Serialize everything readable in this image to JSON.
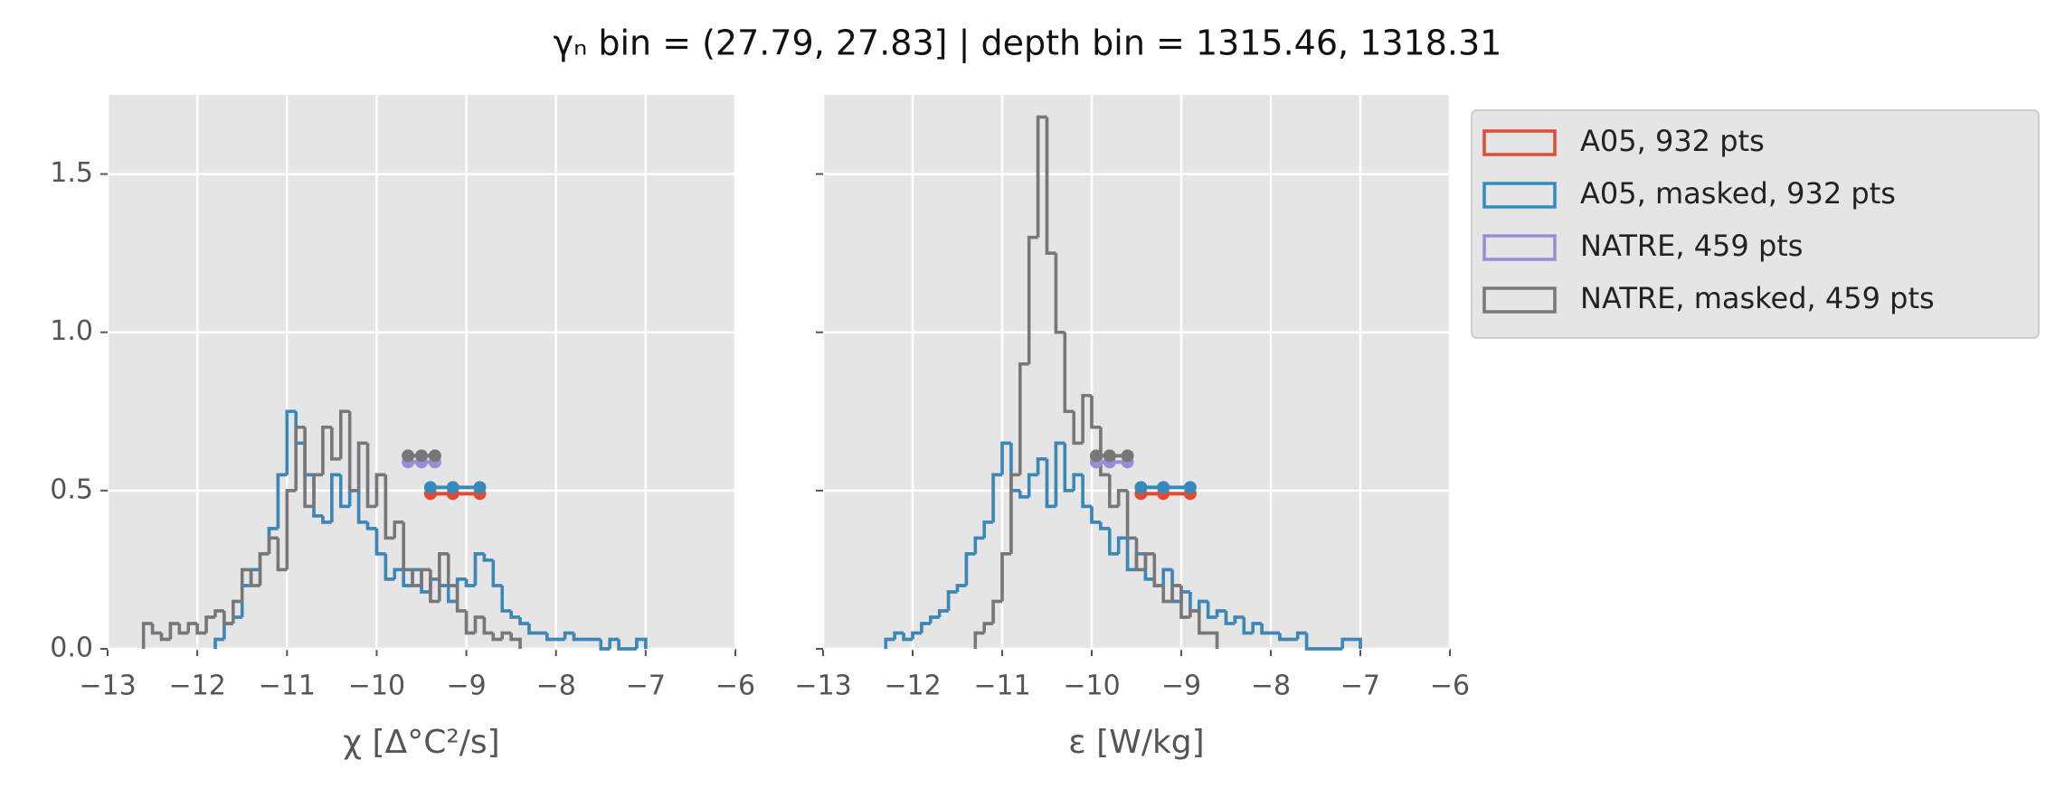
{
  "figure_title": "γₙ bin = (27.79, 27.83] | depth bin = 1315.46, 1318.31",
  "chart_data": [
    {
      "type": "histogram",
      "xlabel": "χ [Δ°C²/s]",
      "xlim": [
        -13,
        -6
      ],
      "ylim": [
        0,
        1.75
      ],
      "xticks": [
        {
          "value": -13,
          "label": "−13"
        },
        {
          "value": -12,
          "label": "−12"
        },
        {
          "value": -11,
          "label": "−11"
        },
        {
          "value": -10,
          "label": "−10"
        },
        {
          "value": -9,
          "label": "−9"
        },
        {
          "value": -8,
          "label": "−8"
        },
        {
          "value": -7,
          "label": "−7"
        },
        {
          "value": -6,
          "label": "−6"
        }
      ],
      "yticks": [
        {
          "value": 0,
          "label": "0.0"
        },
        {
          "value": 0.5,
          "label": "0.5"
        },
        {
          "value": 1,
          "label": "1.0"
        },
        {
          "value": 1.5,
          "label": "1.5"
        }
      ],
      "show_ytick_labels": true,
      "grid": true,
      "legend": "outside-right",
      "series": [
        {
          "name": "A05, 932 pts",
          "color": "#e24a33",
          "bins": [
            -11.8,
            -11.7,
            -11.6,
            -11.5,
            -11.4,
            -11.3,
            -11.2,
            -11.1,
            -11.0,
            -10.9,
            -10.8,
            -10.7,
            -10.6,
            -10.5,
            -10.4,
            -10.3,
            -10.2,
            -10.1,
            -10.0,
            -9.9,
            -9.8,
            -9.7,
            -9.6,
            -9.5,
            -9.4,
            -9.3,
            -9.2,
            -9.1,
            -9.0,
            -8.9,
            -8.8,
            -8.7,
            -8.6,
            -8.5,
            -8.4,
            -8.3,
            -8.2,
            -8.1,
            -8.0,
            -7.9,
            -7.8,
            -7.7,
            -7.6,
            -7.5,
            -7.4,
            -7.3,
            -7.2,
            -7.1,
            -7.0
          ],
          "values": [
            0.03,
            0.08,
            0.1,
            0.2,
            0.25,
            0.3,
            0.38,
            0.55,
            0.75,
            0.65,
            0.55,
            0.42,
            0.4,
            0.55,
            0.45,
            0.5,
            0.4,
            0.38,
            0.3,
            0.22,
            0.25,
            0.2,
            0.25,
            0.18,
            0.22,
            0.2,
            0.15,
            0.22,
            0.2,
            0.3,
            0.28,
            0.2,
            0.12,
            0.1,
            0.08,
            0.05,
            0.05,
            0.03,
            0.03,
            0.05,
            0.03,
            0.03,
            0.03,
            0,
            0.03,
            0,
            0,
            0.03
          ],
          "marker_x": [
            -9.4,
            -9.15,
            -8.85
          ],
          "marker_y": 0.49
        },
        {
          "name": "A05, masked,  932 pts",
          "color": "#348abd",
          "bins": [
            -11.8,
            -11.7,
            -11.6,
            -11.5,
            -11.4,
            -11.3,
            -11.2,
            -11.1,
            -11.0,
            -10.9,
            -10.8,
            -10.7,
            -10.6,
            -10.5,
            -10.4,
            -10.3,
            -10.2,
            -10.1,
            -10.0,
            -9.9,
            -9.8,
            -9.7,
            -9.6,
            -9.5,
            -9.4,
            -9.3,
            -9.2,
            -9.1,
            -9.0,
            -8.9,
            -8.8,
            -8.7,
            -8.6,
            -8.5,
            -8.4,
            -8.3,
            -8.2,
            -8.1,
            -8.0,
            -7.9,
            -7.8,
            -7.7,
            -7.6,
            -7.5,
            -7.4,
            -7.3,
            -7.2,
            -7.1,
            -7.0
          ],
          "values": [
            0.03,
            0.08,
            0.1,
            0.2,
            0.25,
            0.3,
            0.38,
            0.55,
            0.75,
            0.65,
            0.55,
            0.42,
            0.4,
            0.55,
            0.45,
            0.5,
            0.4,
            0.38,
            0.3,
            0.22,
            0.25,
            0.2,
            0.25,
            0.18,
            0.22,
            0.2,
            0.15,
            0.22,
            0.2,
            0.3,
            0.28,
            0.2,
            0.12,
            0.1,
            0.08,
            0.05,
            0.05,
            0.03,
            0.03,
            0.05,
            0.03,
            0.03,
            0.03,
            0,
            0.03,
            0,
            0,
            0.03
          ],
          "marker_x": [
            -9.4,
            -9.15,
            -8.85
          ],
          "marker_y": 0.51
        },
        {
          "name": "NATRE, 459 pts",
          "color": "#988ed5",
          "bins": [
            -12.6,
            -12.5,
            -12.4,
            -12.3,
            -12.2,
            -12.1,
            -12.0,
            -11.9,
            -11.8,
            -11.7,
            -11.6,
            -11.5,
            -11.4,
            -11.3,
            -11.2,
            -11.1,
            -11.0,
            -10.9,
            -10.8,
            -10.7,
            -10.6,
            -10.5,
            -10.4,
            -10.3,
            -10.2,
            -10.1,
            -10.0,
            -9.9,
            -9.8,
            -9.7,
            -9.6,
            -9.5,
            -9.4,
            -9.3,
            -9.2,
            -9.1,
            -9.0,
            -8.9,
            -8.8,
            -8.7,
            -8.6,
            -8.5,
            -8.4
          ],
          "values": [
            0.08,
            0.05,
            0.03,
            0.08,
            0.05,
            0.08,
            0.05,
            0.1,
            0.12,
            0.08,
            0.15,
            0.25,
            0.2,
            0.3,
            0.35,
            0.25,
            0.5,
            0.7,
            0.45,
            0.55,
            0.7,
            0.6,
            0.75,
            0.5,
            0.65,
            0.45,
            0.55,
            0.35,
            0.4,
            0.25,
            0.2,
            0.25,
            0.15,
            0.3,
            0.2,
            0.12,
            0.05,
            0.1,
            0.05,
            0.03,
            0.05,
            0.03
          ],
          "marker_x": [
            -9.65,
            -9.5,
            -9.35
          ],
          "marker_y": 0.59
        },
        {
          "name": "NATRE, masked,  459 pts",
          "color": "#777777",
          "bins": [
            -12.6,
            -12.5,
            -12.4,
            -12.3,
            -12.2,
            -12.1,
            -12.0,
            -11.9,
            -11.8,
            -11.7,
            -11.6,
            -11.5,
            -11.4,
            -11.3,
            -11.2,
            -11.1,
            -11.0,
            -10.9,
            -10.8,
            -10.7,
            -10.6,
            -10.5,
            -10.4,
            -10.3,
            -10.2,
            -10.1,
            -10.0,
            -9.9,
            -9.8,
            -9.7,
            -9.6,
            -9.5,
            -9.4,
            -9.3,
            -9.2,
            -9.1,
            -9.0,
            -8.9,
            -8.8,
            -8.7,
            -8.6,
            -8.5,
            -8.4
          ],
          "values": [
            0.08,
            0.05,
            0.03,
            0.08,
            0.05,
            0.08,
            0.05,
            0.1,
            0.12,
            0.08,
            0.15,
            0.25,
            0.2,
            0.3,
            0.35,
            0.25,
            0.5,
            0.7,
            0.45,
            0.55,
            0.7,
            0.6,
            0.75,
            0.5,
            0.65,
            0.45,
            0.55,
            0.35,
            0.4,
            0.25,
            0.2,
            0.25,
            0.15,
            0.3,
            0.2,
            0.12,
            0.05,
            0.1,
            0.05,
            0.03,
            0.05,
            0.03
          ],
          "marker_x": [
            -9.65,
            -9.5,
            -9.35
          ],
          "marker_y": 0.61
        }
      ]
    },
    {
      "type": "histogram",
      "xlabel": "ε [W/kg]",
      "xlim": [
        -13,
        -6
      ],
      "ylim": [
        0,
        1.75
      ],
      "xticks": [
        {
          "value": -13,
          "label": "−13"
        },
        {
          "value": -12,
          "label": "−12"
        },
        {
          "value": -11,
          "label": "−11"
        },
        {
          "value": -10,
          "label": "−10"
        },
        {
          "value": -9,
          "label": "−9"
        },
        {
          "value": -8,
          "label": "−8"
        },
        {
          "value": -7,
          "label": "−7"
        },
        {
          "value": -6,
          "label": "−6"
        }
      ],
      "yticks": [
        0,
        0.5,
        1,
        1.5
      ],
      "show_ytick_labels": false,
      "grid": true,
      "series": [
        {
          "color": "#e24a33",
          "bins": [
            -12.3,
            -12.2,
            -12.1,
            -12.0,
            -11.9,
            -11.8,
            -11.7,
            -11.6,
            -11.5,
            -11.4,
            -11.3,
            -11.2,
            -11.1,
            -11.0,
            -10.9,
            -10.8,
            -10.7,
            -10.6,
            -10.5,
            -10.4,
            -10.3,
            -10.2,
            -10.1,
            -10.0,
            -9.9,
            -9.8,
            -9.7,
            -9.6,
            -9.5,
            -9.4,
            -9.3,
            -9.2,
            -9.1,
            -9.0,
            -8.9,
            -8.8,
            -8.7,
            -8.6,
            -8.5,
            -8.4,
            -8.3,
            -8.2,
            -8.1,
            -8.0,
            -7.9,
            -7.8,
            -7.7,
            -7.6,
            -7.5,
            -7.4,
            -7.3,
            -7.2,
            -7.1,
            -7.0
          ],
          "values": [
            0.03,
            0.05,
            0.03,
            0.05,
            0.08,
            0.1,
            0.12,
            0.18,
            0.2,
            0.3,
            0.35,
            0.4,
            0.55,
            0.65,
            0.5,
            0.48,
            0.55,
            0.6,
            0.45,
            0.65,
            0.5,
            0.55,
            0.45,
            0.4,
            0.38,
            0.3,
            0.35,
            0.25,
            0.3,
            0.22,
            0.2,
            0.25,
            0.15,
            0.18,
            0.12,
            0.15,
            0.1,
            0.12,
            0.08,
            0.1,
            0.05,
            0.08,
            0.05,
            0.05,
            0.03,
            0.03,
            0.05,
            0,
            0,
            0,
            0,
            0.03,
            0.03
          ],
          "marker_x": [
            -9.45,
            -9.2,
            -8.9
          ],
          "marker_y": 0.49
        },
        {
          "color": "#348abd",
          "bins": [
            -12.3,
            -12.2,
            -12.1,
            -12.0,
            -11.9,
            -11.8,
            -11.7,
            -11.6,
            -11.5,
            -11.4,
            -11.3,
            -11.2,
            -11.1,
            -11.0,
            -10.9,
            -10.8,
            -10.7,
            -10.6,
            -10.5,
            -10.4,
            -10.3,
            -10.2,
            -10.1,
            -10.0,
            -9.9,
            -9.8,
            -9.7,
            -9.6,
            -9.5,
            -9.4,
            -9.3,
            -9.2,
            -9.1,
            -9.0,
            -8.9,
            -8.8,
            -8.7,
            -8.6,
            -8.5,
            -8.4,
            -8.3,
            -8.2,
            -8.1,
            -8.0,
            -7.9,
            -7.8,
            -7.7,
            -7.6,
            -7.5,
            -7.4,
            -7.3,
            -7.2,
            -7.1,
            -7.0
          ],
          "values": [
            0.03,
            0.05,
            0.03,
            0.05,
            0.08,
            0.1,
            0.12,
            0.18,
            0.2,
            0.3,
            0.35,
            0.4,
            0.55,
            0.65,
            0.5,
            0.48,
            0.55,
            0.6,
            0.45,
            0.65,
            0.5,
            0.55,
            0.45,
            0.4,
            0.38,
            0.3,
            0.35,
            0.25,
            0.3,
            0.22,
            0.2,
            0.25,
            0.15,
            0.18,
            0.12,
            0.15,
            0.1,
            0.12,
            0.08,
            0.1,
            0.05,
            0.08,
            0.05,
            0.05,
            0.03,
            0.03,
            0.05,
            0,
            0,
            0,
            0,
            0.03,
            0.03
          ],
          "marker_x": [
            -9.45,
            -9.2,
            -8.9
          ],
          "marker_y": 0.51
        },
        {
          "color": "#988ed5",
          "bins": [
            -11.3,
            -11.2,
            -11.1,
            -11.0,
            -10.9,
            -10.8,
            -10.7,
            -10.6,
            -10.5,
            -10.4,
            -10.3,
            -10.2,
            -10.1,
            -10.0,
            -9.9,
            -9.8,
            -9.7,
            -9.6,
            -9.5,
            -9.4,
            -9.3,
            -9.2,
            -9.1,
            -9.0,
            -8.9,
            -8.8,
            -8.7,
            -8.6
          ],
          "values": [
            0.05,
            0.08,
            0.15,
            0.3,
            0.55,
            0.9,
            1.3,
            1.68,
            1.25,
            1.0,
            0.75,
            0.65,
            0.8,
            0.7,
            0.55,
            0.45,
            0.5,
            0.35,
            0.25,
            0.3,
            0.2,
            0.15,
            0.2,
            0.1,
            0.12,
            0.05,
            0.05
          ],
          "marker_x": [
            -9.95,
            -9.8,
            -9.6
          ],
          "marker_y": 0.59
        },
        {
          "color": "#777777",
          "bins": [
            -11.3,
            -11.2,
            -11.1,
            -11.0,
            -10.9,
            -10.8,
            -10.7,
            -10.6,
            -10.5,
            -10.4,
            -10.3,
            -10.2,
            -10.1,
            -10.0,
            -9.9,
            -9.8,
            -9.7,
            -9.6,
            -9.5,
            -9.4,
            -9.3,
            -9.2,
            -9.1,
            -9.0,
            -8.9,
            -8.8,
            -8.7,
            -8.6
          ],
          "values": [
            0.05,
            0.08,
            0.15,
            0.3,
            0.55,
            0.9,
            1.3,
            1.68,
            1.25,
            1.0,
            0.75,
            0.65,
            0.8,
            0.7,
            0.55,
            0.45,
            0.5,
            0.35,
            0.25,
            0.3,
            0.2,
            0.15,
            0.2,
            0.1,
            0.12,
            0.05,
            0.05
          ],
          "marker_x": [
            -9.95,
            -9.8,
            -9.6
          ],
          "marker_y": 0.61
        }
      ]
    }
  ]
}
